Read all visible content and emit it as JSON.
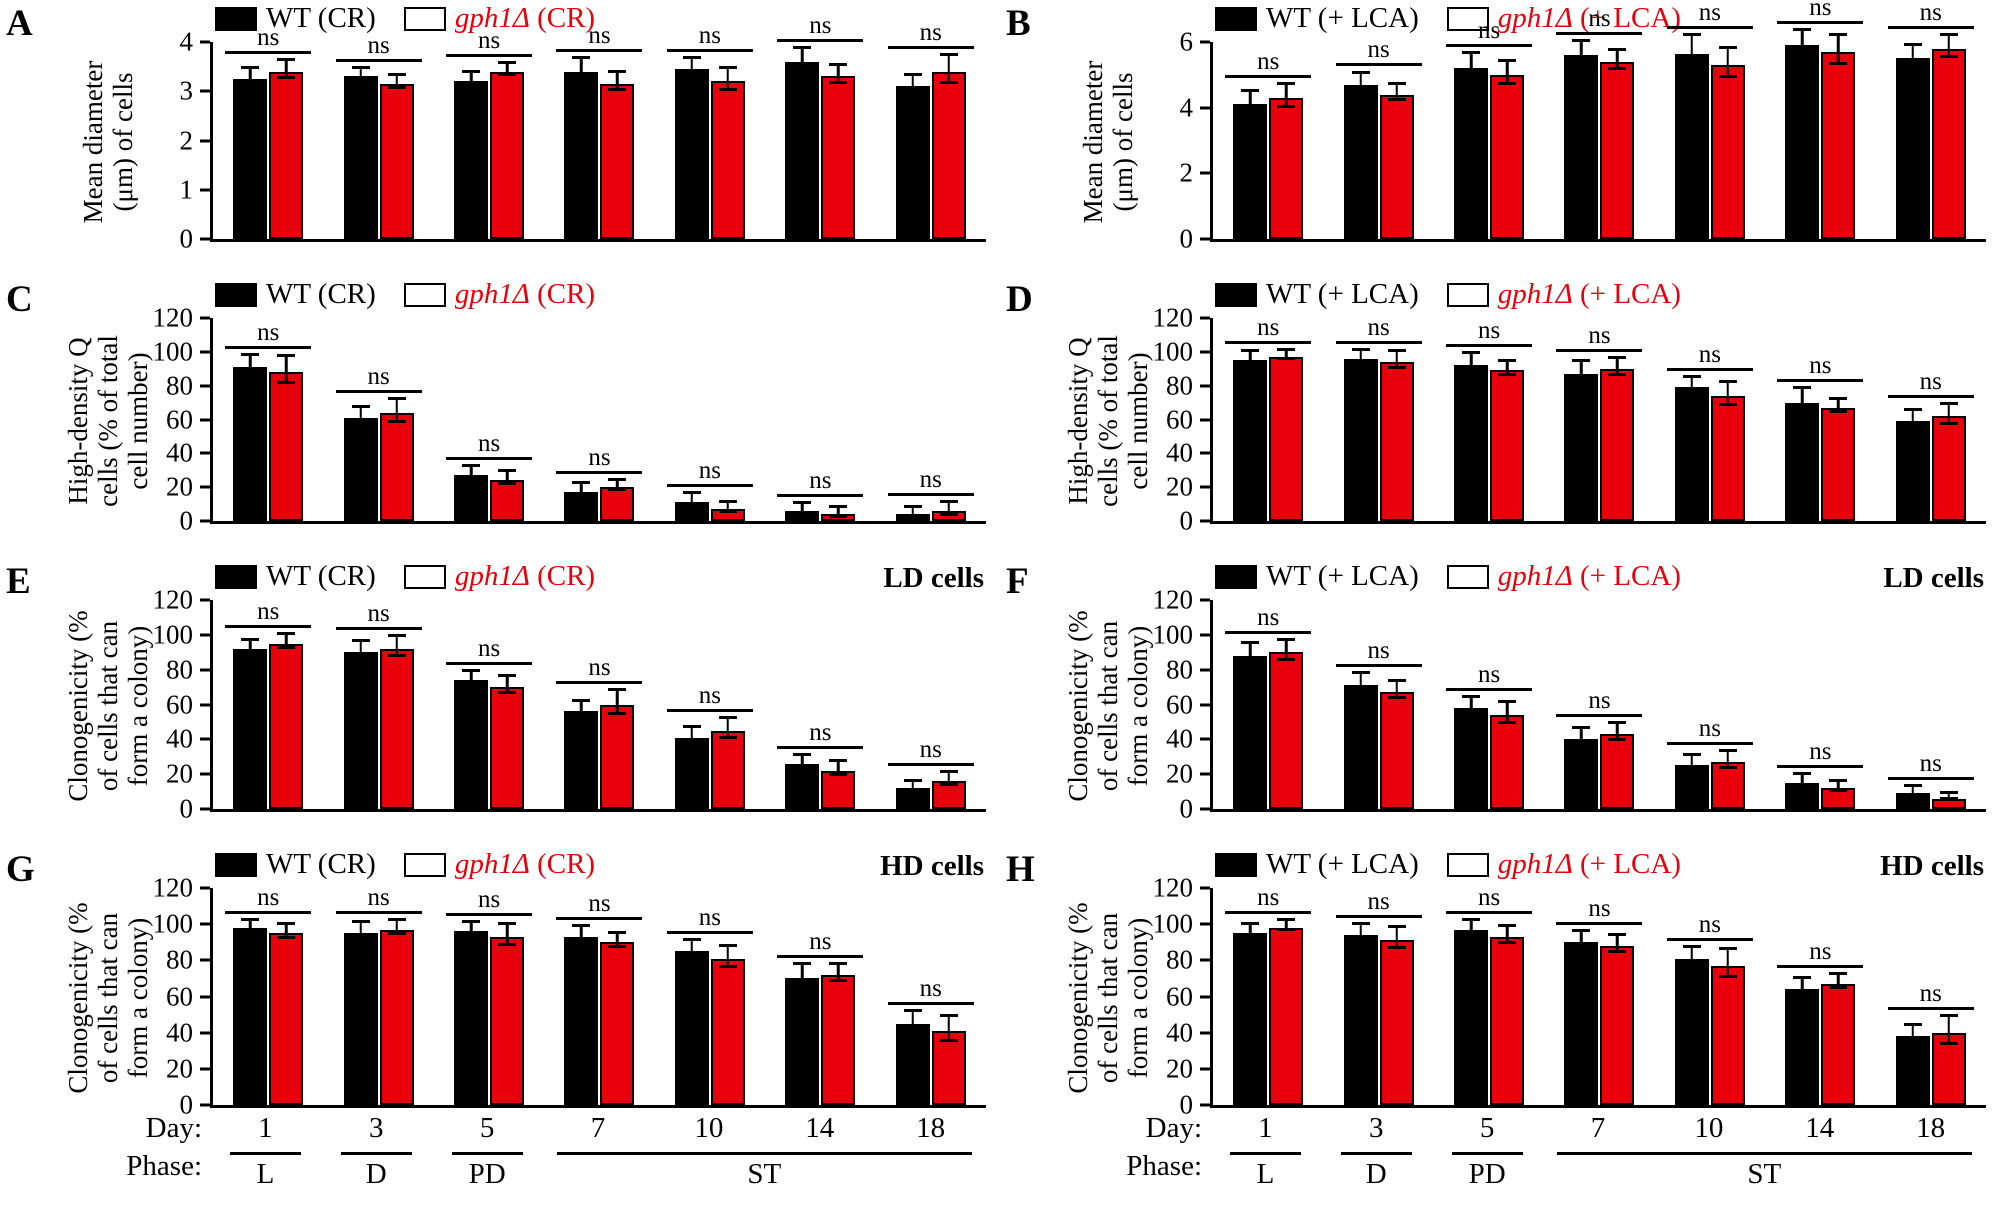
{
  "figure": {
    "day_label": "Day:",
    "phase_label": "Phase:",
    "days": [
      "1",
      "3",
      "5",
      "7",
      "10",
      "14",
      "18"
    ],
    "phases": [
      {
        "label": "L",
        "start": 0,
        "end": 0
      },
      {
        "label": "D",
        "start": 1,
        "end": 1
      },
      {
        "label": "PD",
        "start": 2,
        "end": 2
      },
      {
        "label": "ST",
        "start": 3,
        "end": 6
      }
    ],
    "ns": "ns",
    "colors": {
      "wt": "#000000",
      "gph1": "#e8000b",
      "axis": "#000000"
    }
  },
  "chart_data": [
    {
      "panel": "A",
      "type": "bar",
      "ylabel": "Mean diameter (μm) of cells",
      "ylabel_lines": [
        "Mean diameter",
        "(μm) of cells"
      ],
      "ylim": [
        0,
        4
      ],
      "yticks": [
        0,
        1,
        2,
        3,
        4
      ],
      "categories": [
        "1",
        "3",
        "5",
        "7",
        "10",
        "14",
        "18"
      ],
      "corner_label": "",
      "legend": [
        {
          "text": "WT (CR)",
          "color": "#000000"
        },
        {
          "text_italic": "gph1Δ",
          "text_rest": " (CR)",
          "color": "#e8000b"
        }
      ],
      "series": [
        {
          "name": "WT (CR)",
          "color": "#000000",
          "values": [
            3.25,
            3.3,
            3.2,
            3.4,
            3.45,
            3.6,
            3.1
          ],
          "errors": [
            0.15,
            0.1,
            0.1,
            0.2,
            0.15,
            0.2,
            0.15
          ]
        },
        {
          "name": "gph1Δ (CR)",
          "color": "#e8000b",
          "values": [
            3.4,
            3.15,
            3.4,
            3.15,
            3.2,
            3.3,
            3.4
          ],
          "errors": [
            0.15,
            0.1,
            0.1,
            0.15,
            0.2,
            0.15,
            0.25
          ]
        }
      ],
      "significance": [
        "ns",
        "ns",
        "ns",
        "ns",
        "ns",
        "ns",
        "ns"
      ]
    },
    {
      "panel": "B",
      "type": "bar",
      "ylabel": "Mean diameter (μm) of cells",
      "ylabel_lines": [
        "Mean diameter",
        "(μm) of cells"
      ],
      "ylim": [
        0,
        6
      ],
      "yticks": [
        0,
        2,
        4,
        6
      ],
      "categories": [
        "1",
        "3",
        "5",
        "7",
        "10",
        "14",
        "18"
      ],
      "corner_label": "",
      "legend": [
        {
          "text": "WT (+ LCA)",
          "color": "#000000"
        },
        {
          "text_italic": "gph1Δ",
          "text_rest": " (+ LCA)",
          "color": "#e8000b"
        }
      ],
      "series": [
        {
          "name": "WT (+ LCA)",
          "color": "#000000",
          "values": [
            4.1,
            4.7,
            5.2,
            5.6,
            5.65,
            5.9,
            5.5
          ],
          "errors": [
            0.3,
            0.25,
            0.35,
            0.3,
            0.45,
            0.35,
            0.3
          ]
        },
        {
          "name": "gph1Δ (+ LCA)",
          "color": "#e8000b",
          "values": [
            4.3,
            4.4,
            5.0,
            5.4,
            5.3,
            5.7,
            5.8
          ],
          "errors": [
            0.3,
            0.2,
            0.3,
            0.25,
            0.4,
            0.4,
            0.3
          ]
        }
      ],
      "significance": [
        "ns",
        "ns",
        "ns",
        "ns",
        "ns",
        "ns",
        "ns"
      ]
    },
    {
      "panel": "C",
      "type": "bar",
      "ylabel": "High-density Q cells (% of total cell number)",
      "ylabel_lines": [
        "High-density Q",
        "cells (% of total",
        "cell number)"
      ],
      "ylim": [
        0,
        120
      ],
      "yticks": [
        0,
        20,
        40,
        60,
        80,
        100,
        120
      ],
      "categories": [
        "1",
        "3",
        "5",
        "7",
        "10",
        "14",
        "18"
      ],
      "corner_label": "",
      "legend": [
        {
          "text": "WT (CR)",
          "color": "#000000"
        },
        {
          "text_italic": "gph1Δ",
          "text_rest": " (CR)",
          "color": "#e8000b"
        }
      ],
      "series": [
        {
          "name": "WT (CR)",
          "color": "#000000",
          "values": [
            91,
            61,
            27,
            17,
            11,
            6,
            4
          ],
          "errors": [
            5,
            4,
            3,
            3,
            3,
            2,
            2
          ]
        },
        {
          "name": "gph1Δ (CR)",
          "color": "#e8000b",
          "values": [
            88,
            64,
            24,
            20,
            7,
            4,
            6
          ],
          "errors": [
            7,
            6,
            3,
            2,
            2,
            2,
            3
          ]
        }
      ],
      "significance": [
        "ns",
        "ns",
        "ns",
        "ns",
        "ns",
        "ns",
        "ns"
      ]
    },
    {
      "panel": "D",
      "type": "bar",
      "ylabel": "High-density Q cells (% of total cell number)",
      "ylabel_lines": [
        "High-density Q",
        "cells (% of total",
        "cell number)"
      ],
      "ylim": [
        0,
        120
      ],
      "yticks": [
        0,
        20,
        40,
        60,
        80,
        100,
        120
      ],
      "categories": [
        "1",
        "3",
        "5",
        "7",
        "10",
        "14",
        "18"
      ],
      "corner_label": "",
      "legend": [
        {
          "text": "WT (+ LCA)",
          "color": "#000000"
        },
        {
          "text_italic": "gph1Δ",
          "text_rest": " (+ LCA)",
          "color": "#e8000b"
        }
      ],
      "series": [
        {
          "name": "WT (+ LCA)",
          "color": "#000000",
          "values": [
            95,
            96,
            92,
            87,
            79,
            70,
            59
          ],
          "errors": [
            3,
            3,
            5,
            5,
            4,
            6,
            4
          ]
        },
        {
          "name": "gph1Δ (+ LCA)",
          "color": "#e8000b",
          "values": [
            97,
            94,
            89,
            90,
            74,
            67,
            62
          ],
          "errors": [
            2,
            4,
            3,
            4,
            6,
            3,
            5
          ]
        }
      ],
      "significance": [
        "ns",
        "ns",
        "ns",
        "ns",
        "ns",
        "ns",
        "ns"
      ]
    },
    {
      "panel": "E",
      "type": "bar",
      "ylabel": "Clonogenicity (% of cells that can form a colony)",
      "ylabel_lines": [
        "Clonogenicity (%",
        "of cells that can",
        "form a colony)"
      ],
      "ylim": [
        0,
        120
      ],
      "yticks": [
        0,
        20,
        40,
        60,
        80,
        100,
        120
      ],
      "categories": [
        "1",
        "3",
        "5",
        "7",
        "10",
        "14",
        "18"
      ],
      "corner_label": "LD cells",
      "legend": [
        {
          "text": "WT (CR)",
          "color": "#000000"
        },
        {
          "text_italic": "gph1Δ",
          "text_rest": " (CR)",
          "color": "#e8000b"
        }
      ],
      "series": [
        {
          "name": "WT (CR)",
          "color": "#000000",
          "values": [
            92,
            90,
            74,
            56,
            41,
            26,
            12
          ],
          "errors": [
            3,
            4,
            3,
            4,
            4,
            3,
            2
          ]
        },
        {
          "name": "gph1Δ (CR)",
          "color": "#e8000b",
          "values": [
            95,
            92,
            70,
            60,
            45,
            22,
            16
          ],
          "errors": [
            3,
            5,
            4,
            6,
            5,
            3,
            3
          ]
        }
      ],
      "significance": [
        "ns",
        "ns",
        "ns",
        "ns",
        "ns",
        "ns",
        "ns"
      ]
    },
    {
      "panel": "F",
      "type": "bar",
      "ylabel": "Clonogenicity (% of cells that can form a colony)",
      "ylabel_lines": [
        "Clonogenicity (%",
        "of cells that can",
        "form a colony)"
      ],
      "ylim": [
        0,
        120
      ],
      "yticks": [
        0,
        20,
        40,
        60,
        80,
        100,
        120
      ],
      "categories": [
        "1",
        "3",
        "5",
        "7",
        "10",
        "14",
        "18"
      ],
      "corner_label": "LD cells",
      "legend": [
        {
          "text": "WT (+ LCA)",
          "color": "#000000"
        },
        {
          "text_italic": "gph1Δ",
          "text_rest": " (+ LCA)",
          "color": "#e8000b"
        }
      ],
      "series": [
        {
          "name": "WT (+ LCA)",
          "color": "#000000",
          "values": [
            88,
            71,
            58,
            40,
            25,
            15,
            9
          ],
          "errors": [
            5,
            5,
            4,
            4,
            4,
            3,
            2
          ]
        },
        {
          "name": "gph1Δ (+ LCA)",
          "color": "#e8000b",
          "values": [
            90,
            67,
            54,
            43,
            27,
            12,
            6
          ],
          "errors": [
            5,
            4,
            5,
            4,
            4,
            2,
            1
          ]
        }
      ],
      "significance": [
        "ns",
        "ns",
        "ns",
        "ns",
        "ns",
        "ns",
        "ns"
      ]
    },
    {
      "panel": "G",
      "type": "bar",
      "ylabel": "Clonogenicity (% of cells that can form a colony)",
      "ylabel_lines": [
        "Clonogenicity (%",
        "of cells that can",
        "form a colony)"
      ],
      "ylim": [
        0,
        120
      ],
      "yticks": [
        0,
        20,
        40,
        60,
        80,
        100,
        120
      ],
      "categories": [
        "1",
        "3",
        "5",
        "7",
        "10",
        "14",
        "18"
      ],
      "corner_label": "HD cells",
      "legend": [
        {
          "text": "WT (CR)",
          "color": "#000000"
        },
        {
          "text_italic": "gph1Δ",
          "text_rest": " (CR)",
          "color": "#e8000b"
        }
      ],
      "series": [
        {
          "name": "WT (CR)",
          "color": "#000000",
          "values": [
            98,
            95,
            96,
            93,
            85,
            70,
            45
          ],
          "errors": [
            2,
            4,
            3,
            4,
            4,
            6,
            5
          ]
        },
        {
          "name": "gph1Δ (CR)",
          "color": "#e8000b",
          "values": [
            95,
            97,
            93,
            90,
            81,
            72,
            41
          ],
          "errors": [
            3,
            3,
            5,
            3,
            5,
            4,
            6
          ]
        }
      ],
      "significance": [
        "ns",
        "ns",
        "ns",
        "ns",
        "ns",
        "ns",
        "ns"
      ]
    },
    {
      "panel": "H",
      "type": "bar",
      "ylabel": "Clonogenicity (% of cells that can form a colony)",
      "ylabel_lines": [
        "Clonogenicity (%",
        "of cells that can",
        "form a colony)"
      ],
      "ylim": [
        0,
        120
      ],
      "yticks": [
        0,
        20,
        40,
        60,
        80,
        100,
        120
      ],
      "categories": [
        "1",
        "3",
        "5",
        "7",
        "10",
        "14",
        "18"
      ],
      "corner_label": "HD cells",
      "legend": [
        {
          "text": "WT (+ LCA)",
          "color": "#000000"
        },
        {
          "text_italic": "gph1Δ",
          "text_rest": " (+ LCA)",
          "color": "#e8000b"
        }
      ],
      "series": [
        {
          "name": "WT (+ LCA)",
          "color": "#000000",
          "values": [
            95,
            94,
            97,
            90,
            81,
            64,
            38
          ],
          "errors": [
            3,
            4,
            3,
            4,
            4,
            4,
            4
          ]
        },
        {
          "name": "gph1Δ (+ LCA)",
          "color": "#e8000b",
          "values": [
            98,
            91,
            93,
            88,
            77,
            67,
            40
          ],
          "errors": [
            2,
            5,
            4,
            4,
            7,
            3,
            7
          ]
        }
      ],
      "significance": [
        "ns",
        "ns",
        "ns",
        "ns",
        "ns",
        "ns",
        "ns"
      ]
    }
  ]
}
